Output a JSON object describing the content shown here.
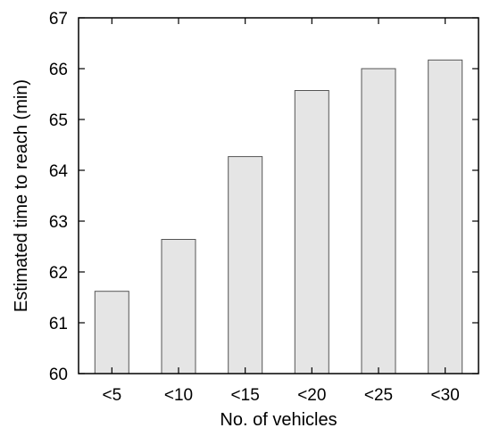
{
  "chart_data": {
    "type": "bar",
    "categories": [
      "<5",
      "<10",
      "<15",
      "<20",
      "<25",
      "<30"
    ],
    "values": [
      61.62,
      62.64,
      64.27,
      65.57,
      66.0,
      66.17
    ],
    "title": "",
    "xlabel": "No. of vehicles",
    "ylabel": "Estimated time to reach (min)",
    "ylim": [
      60,
      67
    ],
    "yticks": [
      60,
      61,
      62,
      63,
      64,
      65,
      66,
      67
    ],
    "grid": false,
    "bar_color": "#e5e5e5",
    "bar_edge_color": "#555555"
  }
}
